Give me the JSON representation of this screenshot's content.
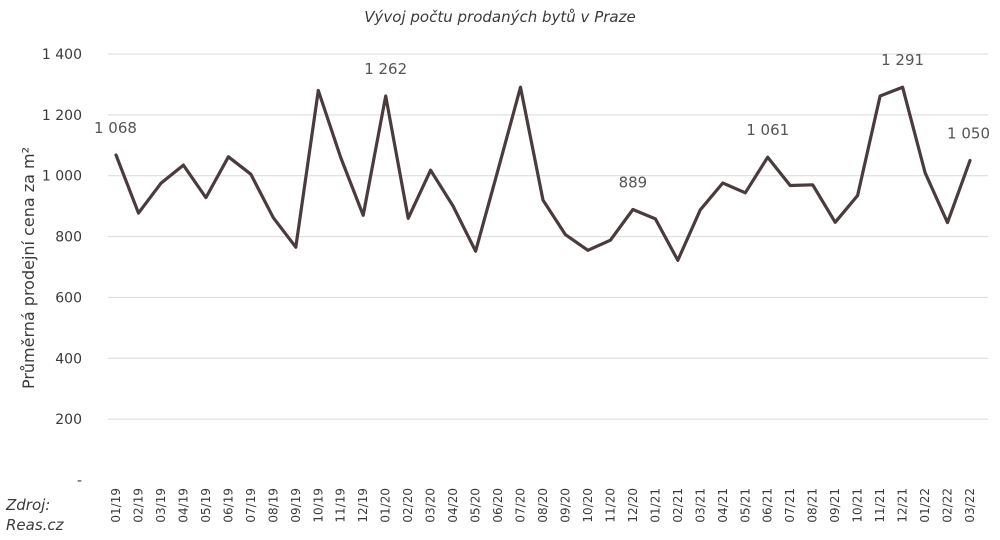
{
  "chart_data": {
    "type": "line",
    "title": "Vývoj počtu prodaných bytů v Praze",
    "xlabel": "",
    "ylabel": "Průměrná prodejní cena za m²",
    "ylim": [
      0,
      1400
    ],
    "yticks": [
      0,
      200,
      400,
      600,
      800,
      1000,
      1200,
      1400
    ],
    "ytick_labels": [
      "-",
      "200",
      "400",
      "600",
      "800",
      "1 000",
      "1 200",
      "1 400"
    ],
    "grid": true,
    "categories": [
      "01/19",
      "02/19",
      "03/19",
      "04/19",
      "05/19",
      "06/19",
      "07/19",
      "08/19",
      "09/19",
      "10/19",
      "11/19",
      "12/19",
      "01/20",
      "02/20",
      "03/20",
      "04/20",
      "05/20",
      "06/20",
      "07/20",
      "08/20",
      "09/20",
      "10/20",
      "11/20",
      "12/20",
      "01/21",
      "02/21",
      "03/21",
      "04/21",
      "05/21",
      "06/21",
      "07/21",
      "08/21",
      "09/21",
      "10/21",
      "11/21",
      "12/21",
      "01/22",
      "02/22",
      "03/22"
    ],
    "series": [
      {
        "color": "#4a3b3d",
        "values": [
          1068,
          877,
          975,
          1035,
          928,
          1062,
          1005,
          862,
          765,
          1280,
          1060,
          870,
          1262,
          860,
          1018,
          900,
          752,
          1020,
          1291,
          920,
          806,
          755,
          788,
          889,
          858,
          722,
          888,
          976,
          944,
          1061,
          968,
          970,
          847,
          935,
          1262,
          1291,
          1010,
          846,
          1050
        ]
      }
    ],
    "data_labels": [
      {
        "index": 0,
        "text": "1 068"
      },
      {
        "index": 12,
        "text": "1 262"
      },
      {
        "index": 23,
        "text": "889"
      },
      {
        "index": 29,
        "text": "1 061"
      },
      {
        "index": 35,
        "text": "1 291"
      },
      {
        "index": 38,
        "text": "1 050"
      }
    ]
  },
  "source": {
    "line1": "Zdroj:",
    "line2": "Reas.cz"
  }
}
